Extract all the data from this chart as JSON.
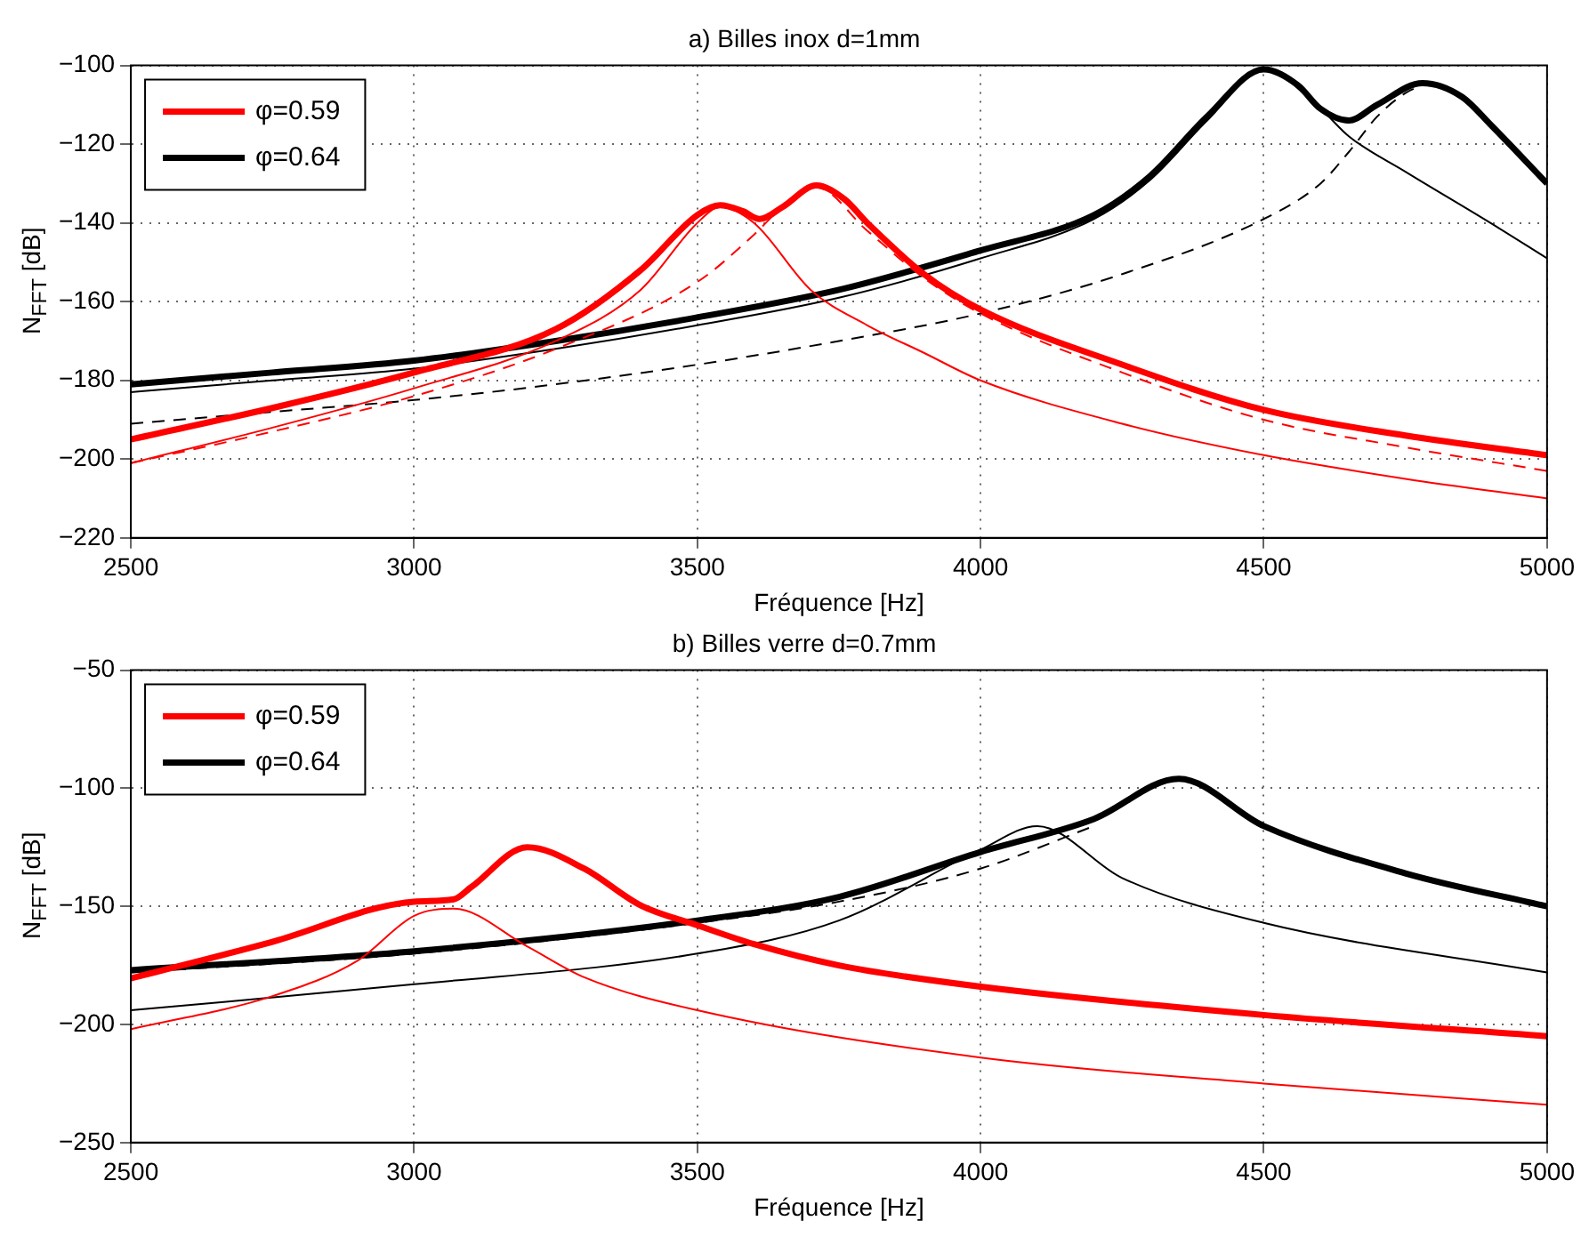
{
  "chart_data": [
    {
      "type": "line",
      "title": "a) Billes inox d=1mm",
      "xlabel": "Fréquence [Hz]",
      "ylabel": "N$_{FFT}$ [dB]",
      "xlim": [
        2500,
        5000
      ],
      "xticks": [
        2500,
        3000,
        3500,
        4000,
        4500,
        5000
      ],
      "ylim": [
        -220,
        -100
      ],
      "yticks": [
        -220,
        -200,
        -180,
        -160,
        -140,
        -120,
        -100
      ],
      "grid": true,
      "legend": "top left",
      "marker": "none",
      "series": [
        {
          "name": "φ=0.59",
          "color": "#ff0000",
          "x": [
            2500,
            2750,
            3000,
            3250,
            3400,
            3500,
            3540,
            3580,
            3610,
            3650,
            3710,
            3760,
            3800,
            3900,
            4000,
            4250,
            4500,
            4750,
            5000
          ],
          "values": [
            -195,
            -187,
            -178,
            -167,
            -152,
            -138,
            -135.5,
            -137,
            -139,
            -136,
            -130.5,
            -134,
            -140,
            -153,
            -162,
            -176,
            -187.5,
            -194,
            -199
          ]
        },
        {
          "color": "#ff0000",
          "x": [
            2500,
            2750,
            3000,
            3250,
            3400,
            3500,
            3540,
            3600,
            3700,
            3800,
            3900,
            4000,
            4250,
            4500,
            4750,
            5000
          ],
          "values": [
            -201,
            -192,
            -182,
            -170,
            -157,
            -140,
            -136,
            -140,
            -157,
            -166,
            -173,
            -180,
            -191,
            -199,
            -205,
            -210
          ],
          "line_style": "solid"
        },
        {
          "color": "#ff0000",
          "x": [
            2500,
            2750,
            3000,
            3250,
            3500,
            3600,
            3650,
            3710,
            3800,
            3900,
            4000,
            4250,
            4500,
            4750,
            5000
          ],
          "values": [
            -201,
            -193,
            -184,
            -172,
            -155,
            -143,
            -136,
            -131,
            -142,
            -154,
            -163,
            -178,
            -190,
            -197,
            -203
          ],
          "line_style": "dashed"
        },
        {
          "name": "φ=0.64",
          "color": "#000000",
          "x": [
            2500,
            2750,
            3000,
            3250,
            3500,
            3750,
            4000,
            4200,
            4300,
            4400,
            4500,
            4560,
            4600,
            4650,
            4700,
            4780,
            4850,
            4900,
            5000
          ],
          "values": [
            -181,
            -178,
            -175,
            -170,
            -164,
            -157,
            -147,
            -138,
            -128,
            -113,
            -101,
            -105,
            -111,
            -114,
            -110,
            -104.5,
            -108,
            -115,
            -130
          ]
        },
        {
          "color": "#000000",
          "x": [
            2500,
            2750,
            3000,
            3250,
            3500,
            3750,
            4000,
            4200,
            4300,
            4400,
            4500,
            4600,
            4650,
            4750,
            4900,
            5000
          ],
          "values": [
            -183,
            -180,
            -177,
            -172,
            -166,
            -159,
            -149,
            -139,
            -129,
            -114,
            -101,
            -111,
            -118,
            -127,
            -140,
            -149
          ],
          "line_style": "solid"
        },
        {
          "color": "#000000",
          "x": [
            2500,
            2750,
            3000,
            3250,
            3500,
            3750,
            4000,
            4250,
            4500,
            4600,
            4650,
            4700,
            4750,
            4780
          ],
          "values": [
            -191,
            -188,
            -185,
            -181,
            -176,
            -170,
            -163,
            -153,
            -139,
            -130,
            -122,
            -113,
            -107,
            -105
          ],
          "line_style": "dashed"
        }
      ]
    },
    {
      "type": "line",
      "title": "b) Billes verre d=0.7mm",
      "xlabel": "Fréquence [Hz]",
      "ylabel": "N$_{FFT}$ [dB]",
      "xlim": [
        2500,
        5000
      ],
      "xticks": [
        2500,
        3000,
        3500,
        4000,
        4500,
        5000
      ],
      "ylim": [
        -250,
        -50
      ],
      "yticks": [
        -250,
        -200,
        -150,
        -100,
        -50
      ],
      "grid": true,
      "legend": "top left",
      "marker": "none",
      "series": [
        {
          "name": "φ=0.59",
          "color": "#ff0000",
          "x": [
            2500,
            2750,
            3000,
            3070,
            3100,
            3200,
            3300,
            3400,
            3500,
            3600,
            3750,
            4000,
            4500,
            5000
          ],
          "values": [
            -180.5,
            -165,
            -148,
            -147,
            -142,
            -125,
            -134,
            -149.6,
            -158,
            -166,
            -175,
            -184,
            -196,
            -205
          ]
        },
        {
          "color": "#ff0000",
          "x": [
            2500,
            2750,
            2900,
            3000,
            3070,
            3200,
            3300,
            3500,
            4000,
            4500,
            5000
          ],
          "values": [
            -202,
            -188,
            -173,
            -154,
            -151,
            -167,
            -180,
            -194,
            -214,
            -225,
            -234
          ],
          "line_style": "solid"
        },
        {
          "name": "φ=0.64",
          "color": "#000000",
          "x": [
            2500,
            3000,
            3500,
            3750,
            4000,
            4200,
            4350,
            4500,
            4750,
            5000
          ],
          "values": [
            -177,
            -169,
            -156,
            -146,
            -127,
            -113,
            -96,
            -116,
            -136,
            -150
          ]
        },
        {
          "color": "#000000",
          "x": [
            2500,
            3000,
            3500,
            3750,
            4000,
            4100,
            4250,
            4500,
            5000
          ],
          "values": [
            -194,
            -183,
            -170,
            -156,
            -126,
            -116,
            -138,
            -157,
            -178
          ],
          "line_style": "solid"
        },
        {
          "color": "#000000",
          "x": [
            2500,
            3000,
            3500,
            3750,
            4000,
            4200
          ],
          "values": [
            -178,
            -170,
            -157,
            -148,
            -134,
            -116
          ],
          "line_style": "dashed"
        }
      ]
    }
  ]
}
